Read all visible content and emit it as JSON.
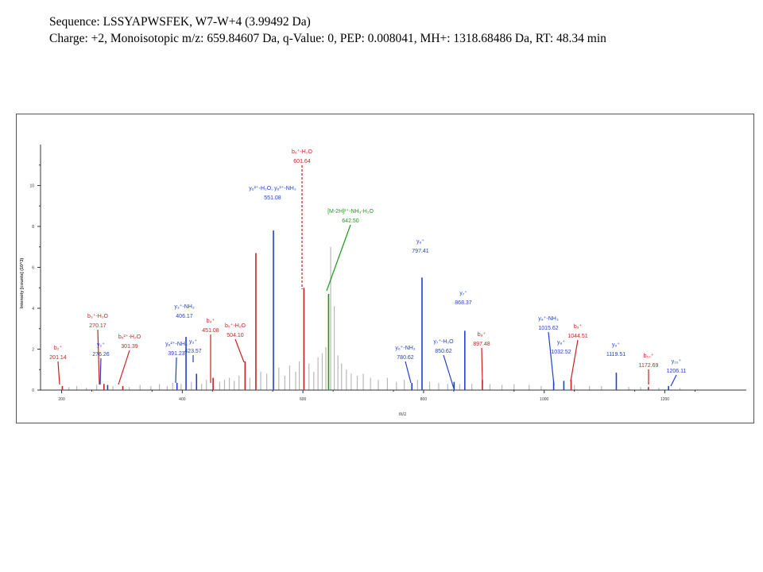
{
  "header": {
    "sequence_line": "Sequence: LSSYAPWSFEK, W7-W+4 (3.99492 Da)",
    "details_line": "Charge: +2, Monoisotopic m/z: 659.84607 Da, q-Value: 0, PEP: 0.008041, MH+: 1318.68486 Da,   RT: 48.34 min"
  },
  "chart_data": {
    "type": "bar",
    "title": "",
    "xlabel": "m/z",
    "ylabel": "Intensity [counts] (10^3)",
    "xlim": [
      165,
      1335
    ],
    "ylim": [
      0,
      12
    ],
    "x_ticks": [
      200,
      400,
      600,
      800,
      1000,
      1200
    ],
    "y_ticks": [
      0,
      2,
      4,
      6,
      8,
      10
    ],
    "grid": false,
    "colors": {
      "b_ion": "#cc1f1f",
      "y_ion": "#1f3fcc",
      "precursor": "#1a9a1a",
      "unassigned": "#b8b8b8",
      "axis": "#333333"
    },
    "peaks": [
      {
        "mz": 201.14,
        "intensity": 0.2,
        "type": "b",
        "label": "b₂⁺",
        "value_label": "201.14"
      },
      {
        "mz": 270.17,
        "intensity": 0.3,
        "type": "b",
        "label": "b₃⁺-H₂O",
        "value_label": "270.17"
      },
      {
        "mz": 276.26,
        "intensity": 0.25,
        "type": "y",
        "label": "y₂⁺",
        "value_label": "276.26"
      },
      {
        "mz": 301.39,
        "intensity": 0.2,
        "type": "b",
        "label": "b₆²⁺-H₂O",
        "value_label": "301.39"
      },
      {
        "mz": 391.23,
        "intensity": 0.35,
        "type": "y",
        "label": "y₆²⁺-NH₃",
        "value_label": "391.23"
      },
      {
        "mz": 406.17,
        "intensity": 2.6,
        "type": "y",
        "label": "y₃⁺-NH₃",
        "value_label": "406.17"
      },
      {
        "mz": 423.57,
        "intensity": 0.8,
        "type": "y",
        "label": "y₃⁺",
        "value_label": "423.57"
      },
      {
        "mz": 451.08,
        "intensity": 0.6,
        "type": "b",
        "label": "b₄⁺",
        "value_label": "451.08"
      },
      {
        "mz": 504.1,
        "intensity": 1.4,
        "type": "b",
        "label": "b₅⁺-H₂O",
        "value_label": "504.10"
      },
      {
        "mz": 522.0,
        "intensity": 6.7,
        "type": "b",
        "label": "",
        "value_label": ""
      },
      {
        "mz": 551.08,
        "intensity": 7.8,
        "type": "y",
        "label": "y₆²⁺-H₂O, y₆²⁺-NH₃",
        "value_label": "551.08"
      },
      {
        "mz": 601.64,
        "intensity": 5.0,
        "type": "b",
        "label": "b₆⁺-H₂O",
        "value_label": "601.64"
      },
      {
        "mz": 642.5,
        "intensity": 4.7,
        "type": "precursor",
        "label": "[M-2H]²⁺-NH₃-H₂O",
        "value_label": "642.50"
      },
      {
        "mz": 780.62,
        "intensity": 0.35,
        "type": "y",
        "label": "y₆⁺-NH₃",
        "value_label": "780.62"
      },
      {
        "mz": 797.41,
        "intensity": 5.5,
        "type": "y",
        "label": "y₆⁺",
        "value_label": "797.41"
      },
      {
        "mz": 850.62,
        "intensity": 0.4,
        "type": "y",
        "label": "y₇⁺-H₂O",
        "value_label": "850.62"
      },
      {
        "mz": 868.37,
        "intensity": 2.9,
        "type": "y",
        "label": "y₇⁺",
        "value_label": "868.37"
      },
      {
        "mz": 897.48,
        "intensity": 0.5,
        "type": "b",
        "label": "b₈⁺",
        "value_label": "897.48"
      },
      {
        "mz": 1015.62,
        "intensity": 0.4,
        "type": "y",
        "label": "y₈⁺-NH₃",
        "value_label": "1015.62"
      },
      {
        "mz": 1032.52,
        "intensity": 0.45,
        "type": "y",
        "label": "y₈⁺",
        "value_label": "1032.52"
      },
      {
        "mz": 1044.51,
        "intensity": 0.5,
        "type": "b",
        "label": "b₉⁺",
        "value_label": "1044.51"
      },
      {
        "mz": 1119.51,
        "intensity": 0.85,
        "type": "y",
        "label": "y₉⁺",
        "value_label": "1119.51"
      },
      {
        "mz": 1172.69,
        "intensity": 0.15,
        "type": "b",
        "label": "b₁₀⁺",
        "value_label": "1172.69"
      },
      {
        "mz": 1206.11,
        "intensity": 0.2,
        "type": "y",
        "label": "y₁₀⁺",
        "value_label": "1206.11"
      }
    ],
    "unassigned_peaks": [
      {
        "mz": 212,
        "intensity": 0.15
      },
      {
        "mz": 225,
        "intensity": 0.2
      },
      {
        "mz": 241,
        "intensity": 0.12
      },
      {
        "mz": 258,
        "intensity": 0.25
      },
      {
        "mz": 285,
        "intensity": 0.2
      },
      {
        "mz": 312,
        "intensity": 0.15
      },
      {
        "mz": 330,
        "intensity": 0.25
      },
      {
        "mz": 348,
        "intensity": 0.2
      },
      {
        "mz": 362,
        "intensity": 0.3
      },
      {
        "mz": 375,
        "intensity": 0.2
      },
      {
        "mz": 384,
        "intensity": 0.35
      },
      {
        "mz": 398,
        "intensity": 0.3
      },
      {
        "mz": 415,
        "intensity": 0.4
      },
      {
        "mz": 432,
        "intensity": 0.3
      },
      {
        "mz": 440,
        "intensity": 0.5
      },
      {
        "mz": 462,
        "intensity": 0.4
      },
      {
        "mz": 470,
        "intensity": 0.5
      },
      {
        "mz": 478,
        "intensity": 0.6
      },
      {
        "mz": 486,
        "intensity": 0.45
      },
      {
        "mz": 494,
        "intensity": 0.7
      },
      {
        "mz": 512,
        "intensity": 0.6
      },
      {
        "mz": 530,
        "intensity": 0.9
      },
      {
        "mz": 540,
        "intensity": 0.8
      },
      {
        "mz": 560,
        "intensity": 1.1
      },
      {
        "mz": 570,
        "intensity": 0.7
      },
      {
        "mz": 578,
        "intensity": 1.2
      },
      {
        "mz": 588,
        "intensity": 0.9
      },
      {
        "mz": 594,
        "intensity": 1.4
      },
      {
        "mz": 610,
        "intensity": 1.3
      },
      {
        "mz": 618,
        "intensity": 0.9
      },
      {
        "mz": 625,
        "intensity": 1.6
      },
      {
        "mz": 632,
        "intensity": 1.8
      },
      {
        "mz": 638,
        "intensity": 2.1
      },
      {
        "mz": 646,
        "intensity": 7.0
      },
      {
        "mz": 652,
        "intensity": 4.1
      },
      {
        "mz": 658,
        "intensity": 1.7
      },
      {
        "mz": 664,
        "intensity": 1.3
      },
      {
        "mz": 672,
        "intensity": 1.0
      },
      {
        "mz": 680,
        "intensity": 0.8
      },
      {
        "mz": 690,
        "intensity": 0.7
      },
      {
        "mz": 700,
        "intensity": 0.8
      },
      {
        "mz": 712,
        "intensity": 0.6
      },
      {
        "mz": 725,
        "intensity": 0.5
      },
      {
        "mz": 740,
        "intensity": 0.6
      },
      {
        "mz": 755,
        "intensity": 0.4
      },
      {
        "mz": 768,
        "intensity": 0.5
      },
      {
        "mz": 790,
        "intensity": 0.5
      },
      {
        "mz": 810,
        "intensity": 0.4
      },
      {
        "mz": 825,
        "intensity": 0.35
      },
      {
        "mz": 840,
        "intensity": 0.3
      },
      {
        "mz": 860,
        "intensity": 0.3
      },
      {
        "mz": 880,
        "intensity": 0.3
      },
      {
        "mz": 910,
        "intensity": 0.3
      },
      {
        "mz": 930,
        "intensity": 0.25
      },
      {
        "mz": 950,
        "intensity": 0.3
      },
      {
        "mz": 975,
        "intensity": 0.25
      },
      {
        "mz": 995,
        "intensity": 0.2
      },
      {
        "mz": 1050,
        "intensity": 0.25
      },
      {
        "mz": 1075,
        "intensity": 0.2
      },
      {
        "mz": 1095,
        "intensity": 0.2
      },
      {
        "mz": 1140,
        "intensity": 0.15
      },
      {
        "mz": 1160,
        "intensity": 0.15
      },
      {
        "mz": 1190,
        "intensity": 0.12
      },
      {
        "mz": 1225,
        "intensity": 0.1
      }
    ]
  }
}
